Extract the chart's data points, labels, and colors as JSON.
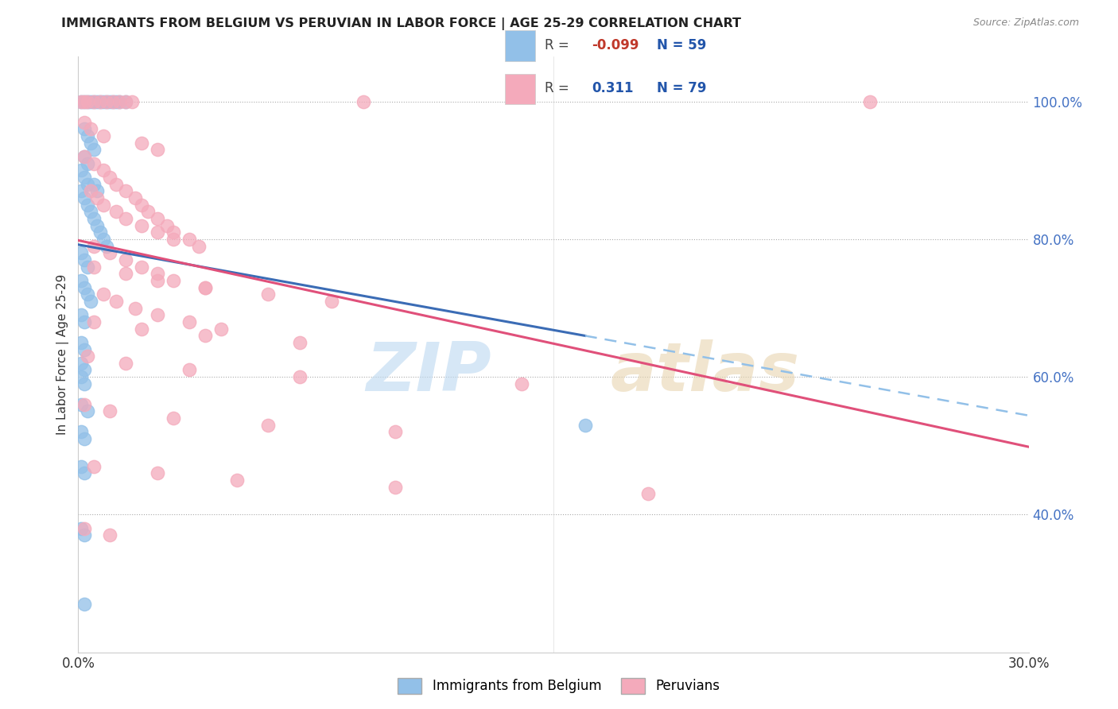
{
  "title": "IMMIGRANTS FROM BELGIUM VS PERUVIAN IN LABOR FORCE | AGE 25-29 CORRELATION CHART",
  "source": "Source: ZipAtlas.com",
  "ylabel": "In Labor Force | Age 25-29",
  "xlim": [
    0.0,
    0.3
  ],
  "ylim": [
    0.2,
    1.065
  ],
  "blue_color": "#92C0E8",
  "pink_color": "#F4AABB",
  "blue_line_color": "#3B6CB5",
  "pink_line_color": "#E0507A",
  "blue_line_dash_color": "#92C0E8",
  "legend_r_blue": "-0.099",
  "legend_n_blue": "59",
  "legend_r_pink": "0.311",
  "legend_n_pink": "79",
  "blue_pts_x": [
    0.001,
    0.002,
    0.003,
    0.004,
    0.005,
    0.006,
    0.007,
    0.008,
    0.009,
    0.01,
    0.011,
    0.012,
    0.013,
    0.015,
    0.002,
    0.003,
    0.004,
    0.005,
    0.002,
    0.003,
    0.001,
    0.002,
    0.003,
    0.005,
    0.006,
    0.001,
    0.002,
    0.003,
    0.004,
    0.005,
    0.006,
    0.007,
    0.008,
    0.009,
    0.001,
    0.002,
    0.003,
    0.001,
    0.002,
    0.003,
    0.004,
    0.001,
    0.002,
    0.001,
    0.002,
    0.001,
    0.002,
    0.001,
    0.002,
    0.001,
    0.003,
    0.001,
    0.002,
    0.001,
    0.002,
    0.16,
    0.001,
    0.002,
    0.002
  ],
  "blue_pts_y": [
    1.0,
    1.0,
    1.0,
    1.0,
    1.0,
    1.0,
    1.0,
    1.0,
    1.0,
    1.0,
    1.0,
    1.0,
    1.0,
    1.0,
    0.96,
    0.95,
    0.94,
    0.93,
    0.92,
    0.91,
    0.9,
    0.89,
    0.88,
    0.88,
    0.87,
    0.87,
    0.86,
    0.85,
    0.84,
    0.83,
    0.82,
    0.81,
    0.8,
    0.79,
    0.78,
    0.77,
    0.76,
    0.74,
    0.73,
    0.72,
    0.71,
    0.69,
    0.68,
    0.65,
    0.64,
    0.62,
    0.61,
    0.6,
    0.59,
    0.56,
    0.55,
    0.52,
    0.51,
    0.47,
    0.46,
    0.53,
    0.38,
    0.37,
    0.27
  ],
  "pink_pts_x": [
    0.001,
    0.002,
    0.003,
    0.005,
    0.007,
    0.009,
    0.011,
    0.013,
    0.015,
    0.017,
    0.09,
    0.25,
    0.002,
    0.004,
    0.008,
    0.02,
    0.025,
    0.002,
    0.005,
    0.008,
    0.01,
    0.012,
    0.015,
    0.018,
    0.02,
    0.022,
    0.025,
    0.028,
    0.03,
    0.035,
    0.038,
    0.004,
    0.006,
    0.008,
    0.012,
    0.015,
    0.02,
    0.025,
    0.03,
    0.005,
    0.01,
    0.015,
    0.02,
    0.025,
    0.03,
    0.04,
    0.008,
    0.012,
    0.018,
    0.025,
    0.035,
    0.045,
    0.005,
    0.015,
    0.025,
    0.04,
    0.06,
    0.08,
    0.005,
    0.02,
    0.04,
    0.07,
    0.003,
    0.015,
    0.035,
    0.07,
    0.14,
    0.002,
    0.01,
    0.03,
    0.06,
    0.1,
    0.005,
    0.025,
    0.05,
    0.1,
    0.18,
    0.002,
    0.01
  ],
  "pink_pts_y": [
    1.0,
    1.0,
    1.0,
    1.0,
    1.0,
    1.0,
    1.0,
    1.0,
    1.0,
    1.0,
    1.0,
    1.0,
    0.97,
    0.96,
    0.95,
    0.94,
    0.93,
    0.92,
    0.91,
    0.9,
    0.89,
    0.88,
    0.87,
    0.86,
    0.85,
    0.84,
    0.83,
    0.82,
    0.81,
    0.8,
    0.79,
    0.87,
    0.86,
    0.85,
    0.84,
    0.83,
    0.82,
    0.81,
    0.8,
    0.79,
    0.78,
    0.77,
    0.76,
    0.75,
    0.74,
    0.73,
    0.72,
    0.71,
    0.7,
    0.69,
    0.68,
    0.67,
    0.76,
    0.75,
    0.74,
    0.73,
    0.72,
    0.71,
    0.68,
    0.67,
    0.66,
    0.65,
    0.63,
    0.62,
    0.61,
    0.6,
    0.59,
    0.56,
    0.55,
    0.54,
    0.53,
    0.52,
    0.47,
    0.46,
    0.45,
    0.44,
    0.43,
    0.38,
    0.37
  ]
}
